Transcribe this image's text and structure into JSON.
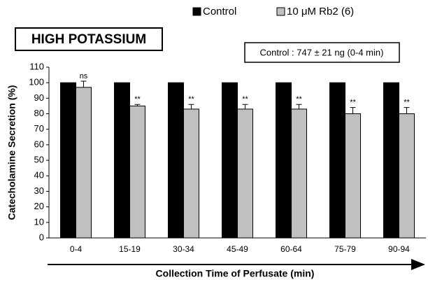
{
  "chart_data": {
    "type": "bar",
    "title": "HIGH POTASSIUM",
    "subtitle": "Control : 747 ± 21 ng (0-4 min)",
    "x_label": "Collection Time of Perfusate (min)",
    "y_label": "Catecholamine Secretion (%)",
    "categories": [
      "0-4",
      "15-19",
      "30-34",
      "45-49",
      "60-64",
      "75-79",
      "90-94"
    ],
    "series": [
      {
        "name": "Control",
        "color": "#000000",
        "values": [
          100,
          100,
          100,
          100,
          100,
          100,
          100
        ]
      },
      {
        "name": "10 μM Rb2 (6)",
        "color": "#c0c0c0",
        "values": [
          97,
          85,
          83,
          83,
          83,
          80,
          80
        ],
        "errors": [
          4,
          1,
          3,
          3,
          3,
          4,
          4
        ],
        "annotations": [
          "ns",
          "**",
          "**",
          "**",
          "**",
          "**",
          "**"
        ]
      }
    ],
    "ylim": [
      0,
      110
    ],
    "yticks": [
      0,
      10,
      20,
      30,
      40,
      50,
      60,
      70,
      80,
      90,
      100,
      110
    ],
    "legend": "top"
  }
}
